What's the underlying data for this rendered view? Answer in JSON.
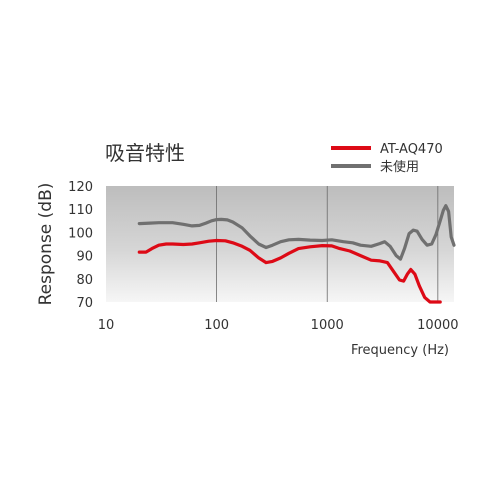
{
  "chart_data": {
    "type": "line",
    "title": "吸音特性",
    "xlabel": "Frequency (Hz)",
    "ylabel": "Response (dB)",
    "xscale": "log",
    "xlim": [
      10,
      14000
    ],
    "ylim": [
      70,
      120
    ],
    "x_ticks": [
      10,
      100,
      1000,
      10000
    ],
    "x_tick_labels": [
      "10",
      "100",
      "1000",
      "10000"
    ],
    "y_ticks": [
      70,
      80,
      90,
      100,
      110,
      120
    ],
    "y_tick_labels": [
      "70",
      "80",
      "90",
      "100",
      "110",
      "120"
    ],
    "grid": "vertical lines at decades",
    "legend_position": "top-right",
    "series": [
      {
        "name": "AT-AQ470",
        "color": "#dd0a16",
        "points": [
          [
            20,
            91.5
          ],
          [
            23,
            91.5
          ],
          [
            26,
            93
          ],
          [
            30,
            94.5
          ],
          [
            35,
            95
          ],
          [
            40,
            95
          ],
          [
            50,
            94.8
          ],
          [
            60,
            95
          ],
          [
            70,
            95.5
          ],
          [
            85,
            96.2
          ],
          [
            100,
            96.5
          ],
          [
            120,
            96.4
          ],
          [
            140,
            95.5
          ],
          [
            170,
            94
          ],
          [
            200,
            92.3
          ],
          [
            240,
            89
          ],
          [
            280,
            87
          ],
          [
            320,
            87.5
          ],
          [
            380,
            89
          ],
          [
            450,
            91
          ],
          [
            550,
            93
          ],
          [
            700,
            93.8
          ],
          [
            900,
            94.3
          ],
          [
            1100,
            94.2
          ],
          [
            1300,
            93
          ],
          [
            1600,
            92
          ],
          [
            2000,
            90
          ],
          [
            2500,
            88
          ],
          [
            3000,
            87.7
          ],
          [
            3500,
            87
          ],
          [
            4000,
            83
          ],
          [
            4500,
            79.5
          ],
          [
            4900,
            79
          ],
          [
            5300,
            82
          ],
          [
            5700,
            84
          ],
          [
            6200,
            82
          ],
          [
            6800,
            77
          ],
          [
            7600,
            72
          ],
          [
            8500,
            70
          ],
          [
            9500,
            69.5
          ],
          [
            10500,
            69.2
          ]
        ]
      },
      {
        "name": "未使用",
        "color": "#707070",
        "points": [
          [
            20,
            103.8
          ],
          [
            25,
            104
          ],
          [
            30,
            104.2
          ],
          [
            40,
            104.2
          ],
          [
            50,
            103.5
          ],
          [
            60,
            102.8
          ],
          [
            70,
            103
          ],
          [
            80,
            104
          ],
          [
            90,
            105
          ],
          [
            100,
            105.5
          ],
          [
            110,
            105.6
          ],
          [
            125,
            105.4
          ],
          [
            140,
            104.5
          ],
          [
            170,
            102
          ],
          [
            200,
            98.5
          ],
          [
            240,
            95
          ],
          [
            280,
            93.5
          ],
          [
            320,
            94.5
          ],
          [
            380,
            96
          ],
          [
            450,
            96.8
          ],
          [
            550,
            97
          ],
          [
            700,
            96.7
          ],
          [
            900,
            96.5
          ],
          [
            1100,
            96.8
          ],
          [
            1400,
            96
          ],
          [
            1700,
            95.5
          ],
          [
            2000,
            94.5
          ],
          [
            2500,
            94
          ],
          [
            3000,
            95.2
          ],
          [
            3300,
            96
          ],
          [
            3700,
            94
          ],
          [
            4200,
            90
          ],
          [
            4600,
            88.5
          ],
          [
            5000,
            93
          ],
          [
            5500,
            99.5
          ],
          [
            6000,
            101
          ],
          [
            6500,
            100.5
          ],
          [
            7200,
            97
          ],
          [
            8000,
            94.5
          ],
          [
            8800,
            95
          ],
          [
            9600,
            99
          ],
          [
            10500,
            105
          ],
          [
            11200,
            109.5
          ],
          [
            11800,
            111.5
          ],
          [
            12500,
            109
          ],
          [
            13200,
            98
          ],
          [
            14000,
            94.5
          ]
        ]
      }
    ]
  }
}
